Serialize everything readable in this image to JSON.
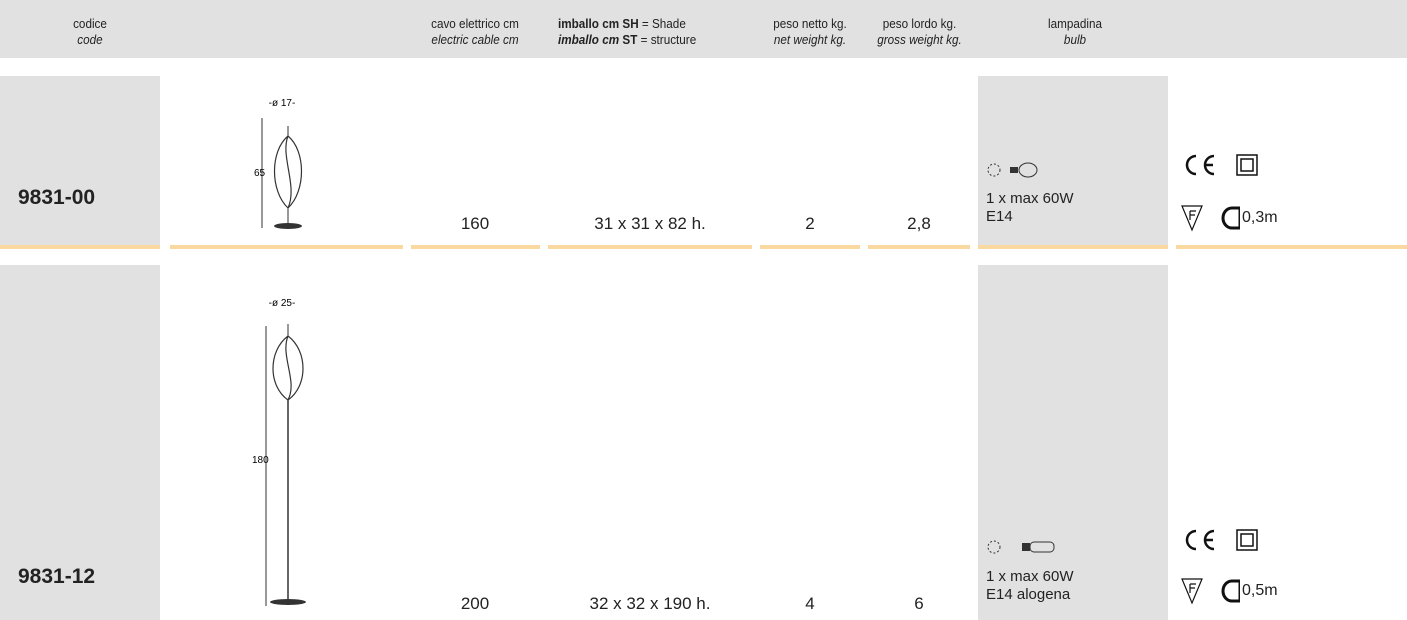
{
  "header": {
    "code": {
      "it": "codice",
      "en": "code"
    },
    "cable": {
      "it": "cavo elettrico cm",
      "en": "electric cable cm"
    },
    "packing": {
      "line1": {
        "label": "imballo cm",
        "key": "SH",
        "text": "= Shade"
      },
      "line2": {
        "label": "imballo cm",
        "key": "ST",
        "text": "= structure"
      }
    },
    "net_weight": {
      "it": "peso netto kg.",
      "en": "net weight kg."
    },
    "gross_weight": {
      "it": "peso lordo kg.",
      "en": "gross weight kg."
    },
    "bulb": {
      "it": "lampadina",
      "en": "bulb"
    }
  },
  "rows": [
    {
      "code": "9831-00",
      "diameter": "-ø 17-",
      "height": "65",
      "cable": "160",
      "packing": "31 x 31 x 82 h.",
      "net_weight": "2",
      "gross_weight": "2,8",
      "bulb": [
        "1 x max 60W",
        "E14"
      ],
      "cable_length": "0,3m"
    },
    {
      "code": "9831-12",
      "diameter": "-ø 25-",
      "height": "180",
      "cable": "200",
      "packing": "32 x 32 x 190 h.",
      "net_weight": "4",
      "gross_weight": "6",
      "bulb": [
        "1 x max 60W",
        "E14 alogena"
      ],
      "cable_length": "0,5m"
    }
  ]
}
